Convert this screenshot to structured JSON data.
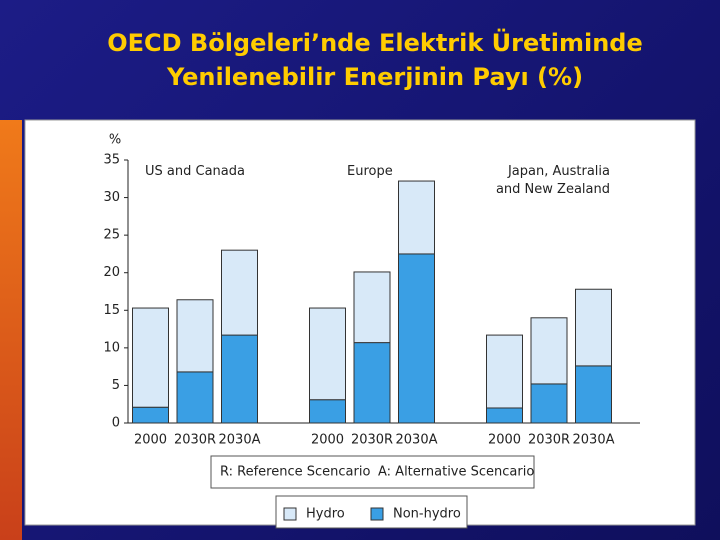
{
  "title": "OECD Bölgeleri’nde Elektrik Üretiminde Yenilenebilir Enerjinin Payı (%)",
  "chart_data": {
    "type": "bar",
    "stacked": true,
    "y_label": "%",
    "groups": [
      "US and Canada",
      "Europe",
      "Japan, Australia and New Zealand"
    ],
    "categories": [
      "2000",
      "2030R",
      "2030A",
      "2000",
      "2030R",
      "2030A",
      "2000",
      "2030R",
      "2030A"
    ],
    "series": [
      {
        "name": "Non-hydro",
        "color": "#3a9fe4",
        "values": [
          2.1,
          6.8,
          11.7,
          3.1,
          10.7,
          22.5,
          2.0,
          5.2,
          7.6
        ]
      },
      {
        "name": "Hydro",
        "color": "#d8e9f8",
        "values": [
          13.2,
          9.6,
          11.3,
          12.2,
          9.4,
          9.7,
          9.7,
          8.8,
          10.2
        ]
      }
    ],
    "ylim": [
      0,
      35
    ],
    "yticks": [
      0,
      5,
      10,
      15,
      20,
      25,
      30,
      35
    ],
    "annotations": [
      "R: Reference Scencario",
      "A: Alternative Scencario"
    ]
  }
}
